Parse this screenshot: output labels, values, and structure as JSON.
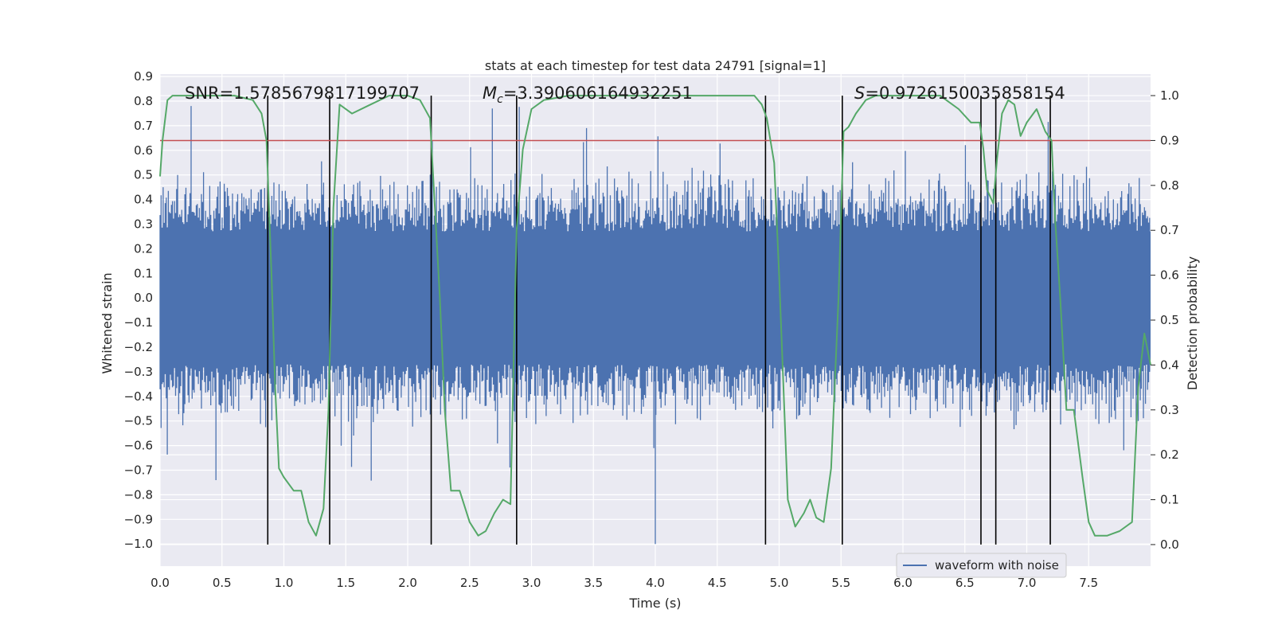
{
  "chart_data": {
    "type": "line",
    "title": "stats at each timestep for test data 24791 [signal=1]",
    "xlabel": "Time (s)",
    "ylabel": "Whitened strain",
    "y2label": "Detection probability",
    "xlim": [
      0,
      8
    ],
    "ylim": [
      -1.09,
      0.91
    ],
    "y2lim": [
      -0.048,
      1.048
    ],
    "xticks": [
      0.0,
      0.5,
      1.0,
      1.5,
      2.0,
      2.5,
      3.0,
      3.5,
      4.0,
      4.5,
      5.0,
      5.5,
      6.0,
      6.5,
      7.0,
      7.5
    ],
    "xtick_labels": [
      "0.0",
      "0.5",
      "1.0",
      "1.5",
      "2.0",
      "2.5",
      "3.0",
      "3.5",
      "4.0",
      "4.5",
      "5.0",
      "5.5",
      "6.0",
      "6.5",
      "7.0",
      "7.5"
    ],
    "yticks": [
      0.9,
      0.8,
      0.7,
      0.6,
      0.5,
      0.4,
      0.3,
      0.2,
      0.1,
      0.0,
      -0.1,
      -0.2,
      -0.3,
      -0.4,
      -0.5,
      -0.6,
      -0.7,
      -0.8,
      -0.9,
      -1.0
    ],
    "ytick_labels": [
      "0.9",
      "0.8",
      "0.7",
      "0.6",
      "0.5",
      "0.4",
      "0.3",
      "0.2",
      "0.1",
      "0.0",
      "−0.1",
      "−0.2",
      "−0.3",
      "−0.4",
      "−0.5",
      "−0.6",
      "−0.7",
      "−0.8",
      "−0.9",
      "−1.0"
    ],
    "y2ticks": [
      1.0,
      0.9,
      0.8,
      0.7,
      0.6,
      0.5,
      0.4,
      0.3,
      0.2,
      0.1,
      0.0
    ],
    "y2tick_labels": [
      "1.0",
      "0.9",
      "0.8",
      "0.7",
      "0.6",
      "0.5",
      "0.4",
      "0.3",
      "0.2",
      "0.1",
      "0.0"
    ],
    "waveform": {
      "name": "waveform with noise",
      "color": "#4c72b0",
      "core_amplitude": 0.27,
      "typical_peak": 0.45,
      "max_peak": 0.8,
      "min_peak": -1.0
    },
    "threshold": {
      "value": 0.9,
      "axis": "y2",
      "color": "#c44e52"
    },
    "detection_probability": {
      "color": "#55a868",
      "x": [
        0.0,
        0.02,
        0.06,
        0.1,
        0.2,
        0.4,
        0.6,
        0.75,
        0.82,
        0.86,
        0.9,
        0.93,
        0.96,
        1.0,
        1.08,
        1.14,
        1.2,
        1.26,
        1.32,
        1.36,
        1.4,
        1.45,
        1.55,
        1.7,
        1.85,
        2.0,
        2.1,
        2.18,
        2.22,
        2.26,
        2.3,
        2.35,
        2.42,
        2.5,
        2.57,
        2.63,
        2.7,
        2.77,
        2.83,
        2.88,
        2.93,
        3.0,
        3.1,
        3.3,
        3.45,
        3.55,
        3.62,
        3.8,
        4.2,
        4.6,
        4.8,
        4.86,
        4.9,
        4.93,
        4.96,
        5.0,
        5.07,
        5.13,
        5.2,
        5.25,
        5.3,
        5.36,
        5.42,
        5.48,
        5.52,
        5.56,
        5.62,
        5.7,
        5.78,
        5.9,
        6.1,
        6.3,
        6.45,
        6.55,
        6.62,
        6.65,
        6.68,
        6.73,
        6.76,
        6.8,
        6.85,
        6.9,
        6.95,
        7.0,
        7.08,
        7.15,
        7.2,
        7.23,
        7.27,
        7.32,
        7.38,
        7.45,
        7.5,
        7.55,
        7.65,
        7.75,
        7.85,
        7.9,
        7.95,
        8.0
      ],
      "y": [
        0.82,
        0.9,
        0.99,
        1.0,
        1.0,
        1.0,
        1.0,
        0.99,
        0.96,
        0.9,
        0.6,
        0.35,
        0.17,
        0.15,
        0.12,
        0.12,
        0.05,
        0.02,
        0.08,
        0.3,
        0.75,
        0.98,
        0.96,
        0.98,
        1.0,
        1.0,
        0.99,
        0.95,
        0.75,
        0.55,
        0.3,
        0.12,
        0.12,
        0.05,
        0.02,
        0.03,
        0.07,
        0.1,
        0.09,
        0.7,
        0.88,
        0.97,
        0.99,
        1.0,
        1.0,
        1.0,
        1.0,
        1.0,
        1.0,
        1.0,
        1.0,
        0.98,
        0.95,
        0.9,
        0.85,
        0.6,
        0.1,
        0.04,
        0.07,
        0.1,
        0.06,
        0.05,
        0.17,
        0.55,
        0.92,
        0.93,
        0.96,
        0.99,
        1.0,
        1.0,
        1.0,
        1.0,
        0.97,
        0.94,
        0.94,
        0.88,
        0.79,
        0.76,
        0.86,
        0.96,
        0.99,
        0.98,
        0.91,
        0.94,
        0.97,
        0.92,
        0.9,
        0.72,
        0.55,
        0.3,
        0.3,
        0.15,
        0.05,
        0.02,
        0.02,
        0.03,
        0.05,
        0.35,
        0.47,
        0.4
      ]
    },
    "event_lines_x": [
      0.87,
      1.37,
      2.19,
      2.88,
      4.89,
      5.51,
      6.63,
      6.75,
      7.19
    ],
    "annotations": [
      {
        "text": "SNR=1.5785679817199707",
        "x": 0.2,
        "y": 0.82
      },
      {
        "text": "=3.390606164932251",
        "math_symbol": "M",
        "math_subscript": "c",
        "x": 2.6,
        "y": 0.82
      },
      {
        "text": "=0.9726150035858154",
        "math_symbol": "S",
        "x": 5.6,
        "y": 0.82
      }
    ],
    "legend": {
      "entries": [
        "waveform with noise"
      ],
      "location": "lower-right"
    },
    "grid": true
  }
}
